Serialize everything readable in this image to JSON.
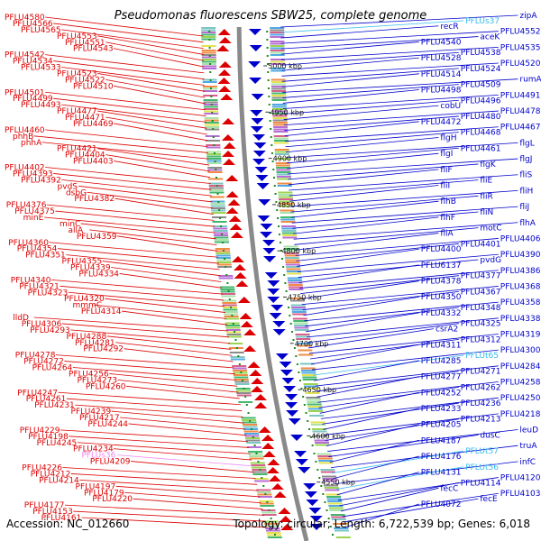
{
  "title": "Pseudomonas fluorescens SBW25, complete genome",
  "accession": "Accession: NC_012660",
  "summary": "Topology: circular; Length: 6,722,539 bp; Genes: 6,018",
  "colors": {
    "forward": "#dd0000",
    "reverse": "#0000cc",
    "rna": "#33bbee",
    "pseudo": "#ee88ee",
    "ring": "#8a8a8a",
    "tick": "#1a8a1a"
  },
  "ticks": [
    "5000 kbp",
    "4950 kbp",
    "4900 kbp",
    "4850 kbp",
    "4800 kbp",
    "4750 kbp",
    "4700 kbp",
    "4650 kbp",
    "4600 kbp",
    "4550 kbp"
  ],
  "left_labels": [
    "PFLU4580",
    "PFLU4566",
    "PFLU4565",
    "PFLU4553",
    "PFLU4551",
    "PFLU4543",
    "PFLU4542",
    "PFLU4534",
    "PFLU4533",
    "PFLU4523",
    "PFLU4522",
    "PFLU4510",
    "PFLU4501",
    "PFLU4499",
    "PFLU4493",
    "PFLU4477",
    "PFLU4471",
    "PFLU4469",
    "PFLU4460",
    "phhB",
    "phhA",
    "PFLU4421",
    "PFLU4404",
    "PFLU4403",
    "PFLU4402",
    "PFLU4393",
    "PFLU4392",
    "pvdS",
    "dsbG",
    "PFLU4382",
    "PFLU4376",
    "PFLU4375",
    "minE",
    "minC",
    "allA",
    "PFLU4359",
    "PFLU4360",
    "PFLU4354",
    "PFLU4351",
    "PFLU4355",
    "PFLU4339",
    "PFLU4334",
    "PFLU4340",
    "PFLU4321",
    "PFLU4323",
    "PFLU4320",
    "mmmC",
    "PFLU4314",
    "lldD",
    "PFLU4306",
    "PFLU4293",
    "PFLU4288",
    "PFLU4281",
    "PFLU4292",
    "PFLU4278",
    "PFLU4272",
    "PFLU4264",
    "PFLU4256",
    "PFLU4273",
    "PFLU4260",
    "PFLU4247",
    "PFLU4261",
    "PFLU4231",
    "PFLU4239",
    "PFLU4217",
    "PFLU4244",
    "PFLU4229",
    "PFLU4198",
    "PFLU4245",
    "PFLU4234",
    "PFLUs36",
    "PFLU4209",
    "PFLU4226",
    "PFLU4212",
    "PFLU4214",
    "PFLU4197",
    "PFLU4179",
    "PFLU4220",
    "PFLU4177",
    "PFLU4153",
    "PFLU4161"
  ],
  "right_labels": [
    "zipA",
    "PFLUs37",
    "recR",
    "PFLU4552",
    "aceK",
    "PFLU4540",
    "PFLU4535",
    "PFLU4538",
    "PFLU4528",
    "PFLU4520",
    "PFLU4524",
    "PFLU4514",
    "rumA",
    "PFLU4509",
    "PFLU4498",
    "PFLU4491",
    "PFLU4496",
    "cobU",
    "PFLU4478",
    "PFLU4480",
    "PFLU4472",
    "PFLU4467",
    "PFLU4468",
    "flgH",
    "flgL",
    "PFLU4461",
    "flgI",
    "flgJ",
    "flgK",
    "fliF",
    "fliS",
    "fliE",
    "fliI",
    "fliH",
    "fliR",
    "flhB",
    "fliJ",
    "fliN",
    "flhF",
    "flhA",
    "motC",
    "fliA",
    "PFLU4406",
    "PFLU4401",
    "PFLU4400",
    "PFLU4390",
    "pvdG",
    "PFLU6137",
    "PFLU4386",
    "PFLU4377",
    "PFLU4378",
    "PFLU4368",
    "PFLU4367",
    "PFLU4350",
    "PFLU4358",
    "PFLU4348",
    "PFLU4332",
    "PFLU4338",
    "PFLU4325",
    "csrA2",
    "PFLU4319",
    "PFLU4312",
    "PFLU4311",
    "PFLU4300",
    "PFLUt65",
    "PFLU4285",
    "PFLU4284",
    "PFLU4271",
    "PFLU4277",
    "PFLU4258",
    "PFLU4262",
    "PFLU4252",
    "PFLU4250",
    "PFLU4236",
    "PFLU4233",
    "PFLU4218",
    "PFLU4213",
    "PFLU4205",
    "leuD",
    "dusC",
    "PFLU4187",
    "truA",
    "PFLUt57",
    "PFLU4176",
    "infC",
    "PFLUt56",
    "PFLU4131",
    "PFLU4120",
    "PFLU4114",
    "fecC",
    "PFLU4103",
    "fecE",
    "PFLU4072"
  ]
}
